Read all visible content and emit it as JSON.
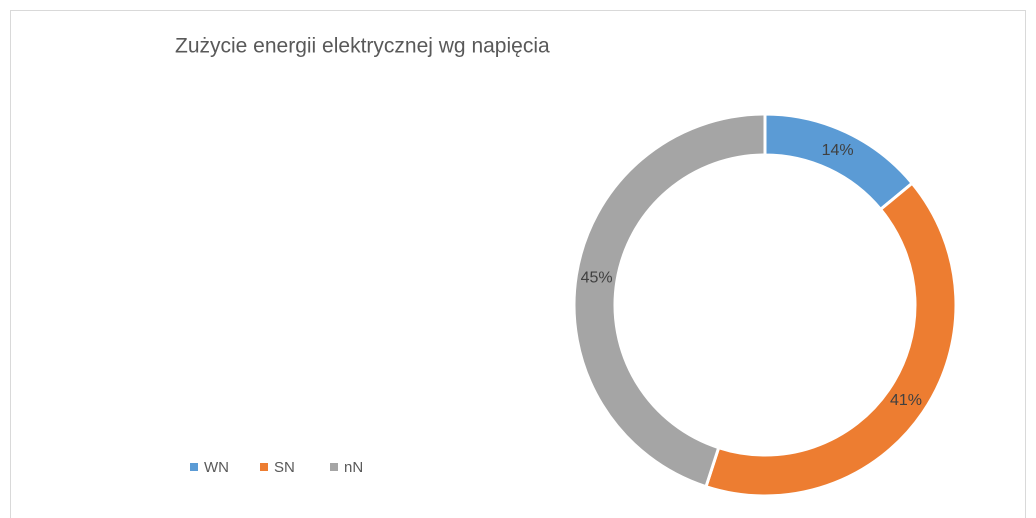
{
  "chart_data": {
    "type": "doughnut",
    "title": "Zużycie energii elektrycznej wg napięcia",
    "categories": [
      "WN",
      "SN",
      "nN"
    ],
    "values": [
      14,
      41,
      45
    ],
    "value_labels": [
      "14%",
      "41%",
      "45%"
    ],
    "colors": [
      "#5b9bd5",
      "#ed7d31",
      "#a5a5a5"
    ],
    "legend": "bottom-left"
  }
}
